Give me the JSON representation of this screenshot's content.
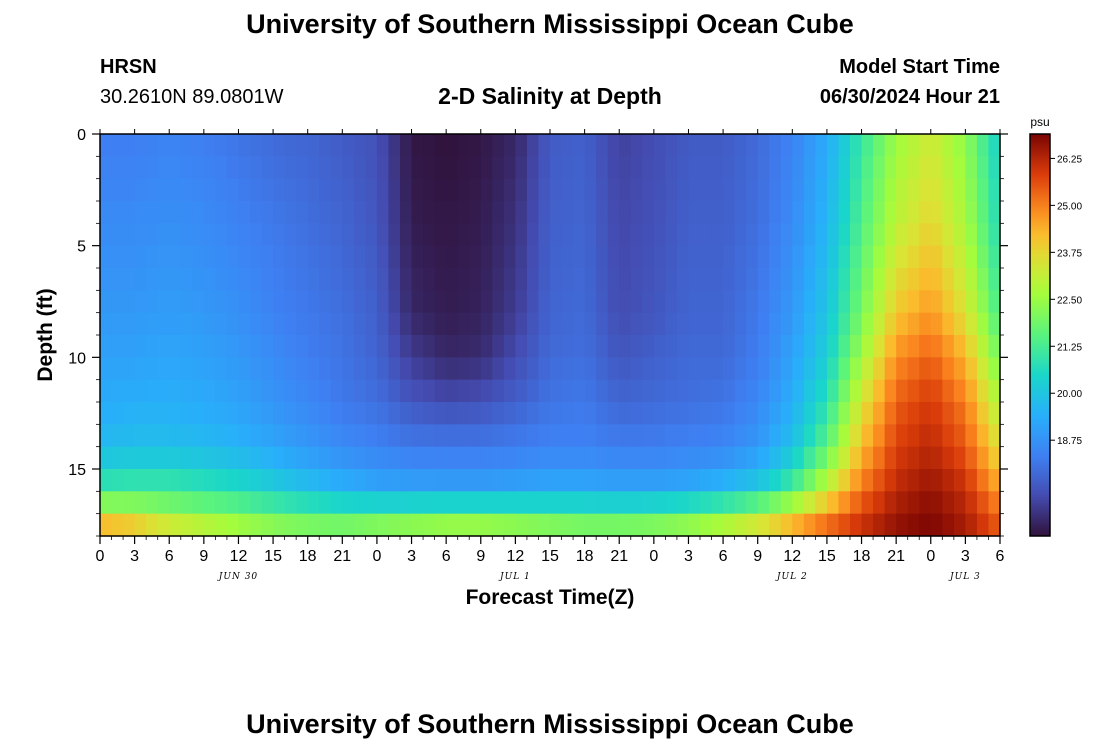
{
  "page": {
    "title_top": "University of Southern Mississippi Ocean Cube",
    "title_bottom": "University of Southern Mississippi Ocean Cube",
    "station": "HRSN",
    "coordinates": "30.2610N  89.0801W",
    "subtitle": "2-D Salinity at Depth",
    "model_start_label": "Model Start Time",
    "model_start_value": "06/30/2024 Hour 21"
  },
  "chart_data": {
    "type": "heatmap",
    "title": "2-D Salinity at Depth",
    "xlabel": "Forecast Time(Z)",
    "ylabel": "Depth (ft)",
    "x_unit": "forecast hour from Jun 30 00Z",
    "x_range": [
      0,
      78
    ],
    "y_range": [
      0,
      18
    ],
    "y_inverted": true,
    "x_ticks": [
      0,
      3,
      6,
      9,
      12,
      15,
      18,
      21,
      24,
      27,
      30,
      33,
      36,
      39,
      42,
      45,
      48,
      51,
      54,
      57,
      60,
      63,
      66,
      69,
      72,
      75,
      78
    ],
    "x_tick_labels": [
      "0",
      "3",
      "6",
      "9",
      "12",
      "15",
      "18",
      "21",
      "0",
      "3",
      "6",
      "9",
      "12",
      "15",
      "18",
      "21",
      "0",
      "3",
      "6",
      "9",
      "12",
      "15",
      "18",
      "21",
      "0",
      "3",
      "6"
    ],
    "day_labels": [
      {
        "label": "JUN 30",
        "x": 12
      },
      {
        "label": "JUL 1",
        "x": 36
      },
      {
        "label": "JUL 2",
        "x": 60
      },
      {
        "label": "JUL 3",
        "x": 75
      }
    ],
    "y_ticks": [
      0,
      5,
      10,
      15
    ],
    "y_tick_labels": [
      "0",
      "5",
      "10",
      "15"
    ],
    "colorbar": {
      "unit": "psu",
      "range": [
        16.2,
        26.9
      ],
      "ticks": [
        18.75,
        20.0,
        21.25,
        22.5,
        23.75,
        25.0,
        26.25
      ],
      "tick_labels": [
        "18.75",
        "20.00",
        "21.25",
        "22.50",
        "23.75",
        "25.00",
        "26.25"
      ]
    },
    "grid_hours": [
      0,
      3,
      6,
      9,
      12,
      15,
      18,
      21,
      24,
      27,
      30,
      33,
      36,
      39,
      42,
      45,
      48,
      51,
      54,
      57,
      60,
      63,
      66,
      69,
      72,
      75,
      78
    ],
    "grid_depths": [
      0,
      4,
      8,
      10,
      12,
      14,
      15,
      16,
      17,
      18
    ],
    "values": [
      [
        18.3,
        18.3,
        18.4,
        18.3,
        18.1,
        17.9,
        17.8,
        17.6,
        17.4,
        16.3,
        16.2,
        16.3,
        16.6,
        17.6,
        17.7,
        17.1,
        17.3,
        17.6,
        17.6,
        17.9,
        18.4,
        19.3,
        21.0,
        22.5,
        23.3,
        22.3,
        20.3
      ],
      [
        18.6,
        18.6,
        18.7,
        18.6,
        18.4,
        18.2,
        18.0,
        17.8,
        17.5,
        16.4,
        16.3,
        16.4,
        16.8,
        17.7,
        17.8,
        17.2,
        17.4,
        17.7,
        17.7,
        18.0,
        18.6,
        19.6,
        21.4,
        23.0,
        23.8,
        22.7,
        20.6
      ],
      [
        18.9,
        18.9,
        19.0,
        18.9,
        18.7,
        18.4,
        18.2,
        18.0,
        17.7,
        16.6,
        16.4,
        16.5,
        17.0,
        17.8,
        17.9,
        17.3,
        17.5,
        17.8,
        17.8,
        18.2,
        18.9,
        20.0,
        22.0,
        24.0,
        24.7,
        23.5,
        21.2
      ],
      [
        19.1,
        19.1,
        19.2,
        19.1,
        18.9,
        18.6,
        18.3,
        18.1,
        17.8,
        17.0,
        16.6,
        16.7,
        17.3,
        17.9,
        18.0,
        17.5,
        17.7,
        17.9,
        17.9,
        18.3,
        19.1,
        20.3,
        22.6,
        24.8,
        25.4,
        24.3,
        21.9
      ],
      [
        19.3,
        19.4,
        19.4,
        19.3,
        19.1,
        18.8,
        18.5,
        18.2,
        18.0,
        17.5,
        17.3,
        17.4,
        17.7,
        18.1,
        18.2,
        17.8,
        17.9,
        18.0,
        18.1,
        18.5,
        19.4,
        20.8,
        23.4,
        25.4,
        25.9,
        25.0,
        22.7
      ],
      [
        19.7,
        19.8,
        19.8,
        19.7,
        19.5,
        19.2,
        18.9,
        18.6,
        18.4,
        18.2,
        18.2,
        18.2,
        18.3,
        18.4,
        18.4,
        18.3,
        18.3,
        18.4,
        18.5,
        18.9,
        19.9,
        21.6,
        24.2,
        25.8,
        26.2,
        25.5,
        23.5
      ],
      [
        20.4,
        20.5,
        20.5,
        20.3,
        20.1,
        19.7,
        19.3,
        19.0,
        18.8,
        18.7,
        18.6,
        18.6,
        18.7,
        18.8,
        18.8,
        18.7,
        18.7,
        18.8,
        19.0,
        19.5,
        20.6,
        22.4,
        24.7,
        26.0,
        26.4,
        25.8,
        24.0
      ],
      [
        21.1,
        21.2,
        21.2,
        21.0,
        20.8,
        20.4,
        20.0,
        19.6,
        19.3,
        19.2,
        19.2,
        19.2,
        19.3,
        19.4,
        19.4,
        19.3,
        19.3,
        19.5,
        19.8,
        20.3,
        21.4,
        23.2,
        25.2,
        26.2,
        26.6,
        26.1,
        24.6
      ],
      [
        23.2,
        23.0,
        22.5,
        22.2,
        21.9,
        21.6,
        21.4,
        21.3,
        21.4,
        21.5,
        21.6,
        21.6,
        21.5,
        21.4,
        21.3,
        21.3,
        21.4,
        21.6,
        22.0,
        22.6,
        23.6,
        24.8,
        25.8,
        26.5,
        26.8,
        26.3,
        25.2
      ],
      [
        25.2,
        24.8,
        24.0,
        23.6,
        23.2,
        22.8,
        22.6,
        22.5,
        22.8,
        23.0,
        23.2,
        23.2,
        23.0,
        22.8,
        22.6,
        22.6,
        22.7,
        23.0,
        23.5,
        24.1,
        24.9,
        25.6,
        26.2,
        26.7,
        26.9,
        26.5,
        25.6
      ]
    ]
  }
}
